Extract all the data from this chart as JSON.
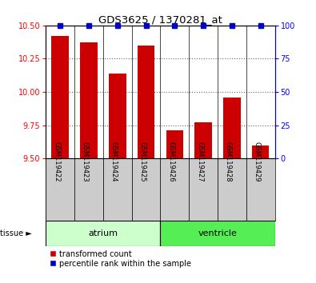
{
  "title": "GDS3625 / 1370281_at",
  "samples": [
    "GSM119422",
    "GSM119423",
    "GSM119424",
    "GSM119425",
    "GSM119426",
    "GSM119427",
    "GSM119428",
    "GSM119429"
  ],
  "red_values": [
    10.42,
    10.37,
    10.14,
    10.35,
    9.71,
    9.77,
    9.96,
    9.6
  ],
  "blue_values": [
    100,
    100,
    100,
    100,
    100,
    100,
    100,
    100
  ],
  "ylim_left": [
    9.5,
    10.5
  ],
  "ylim_right": [
    0,
    100
  ],
  "yticks_left": [
    9.5,
    9.75,
    10.0,
    10.25,
    10.5
  ],
  "yticks_right": [
    0,
    25,
    50,
    75,
    100
  ],
  "bar_color": "#cc0000",
  "dot_color": "#0000cc",
  "bar_width": 0.6,
  "atrium_color": "#ccffcc",
  "ventricle_color": "#55ee55",
  "sample_bg_color": "#cccccc",
  "legend_red_label": "transformed count",
  "legend_blue_label": "percentile rank within the sample",
  "tissue_label": "tissue",
  "grid_yticks": [
    9.75,
    10.0,
    10.25
  ]
}
